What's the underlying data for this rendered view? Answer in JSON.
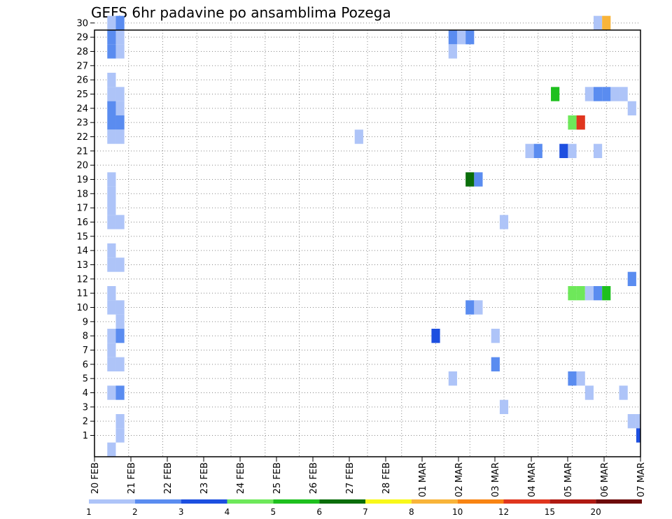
{
  "chart_data": {
    "type": "heatmap",
    "title": "GEFS 6hr padavine po ansamblima Pozega",
    "x_start": "2024-02-20T00",
    "x_end": "2024-03-07T00",
    "x_step_hours": 6,
    "x_tick_labels": [
      "20 FEB",
      "21 FEB",
      "22 FEB",
      "23 FEB",
      "24 FEB",
      "25 FEB",
      "26 FEB",
      "27 FEB",
      "28 FEB",
      "01 MAR",
      "02 MAR",
      "03 MAR",
      "04 MAR",
      "05 MAR",
      "06 MAR",
      "07 MAR"
    ],
    "y_members": [
      1,
      2,
      3,
      4,
      5,
      6,
      7,
      8,
      9,
      10,
      11,
      12,
      13,
      14,
      15,
      16,
      17,
      18,
      19,
      20,
      21,
      22,
      23,
      24,
      25,
      26,
      27,
      28,
      29,
      30
    ],
    "grid": true,
    "grid_style": "dotted",
    "legend_placement": "bottom",
    "legend": {
      "boundaries": [
        "1",
        "2",
        "3",
        "4",
        "5",
        "6",
        "7",
        "8",
        "10",
        "12",
        "15",
        "20"
      ],
      "colors": [
        "#aec4f8",
        "#5a8cf0",
        "#1d4fe0",
        "#6ee85a",
        "#1ec01e",
        "#0a6e0a",
        "#f8f81a",
        "#f8b43a",
        "#f88412",
        "#e0361e",
        "#b01a12",
        "#6e0a0a"
      ]
    },
    "cells": [
      {
        "t": "2024-02-20T12",
        "m": 30,
        "c": "#aec4f8"
      },
      {
        "t": "2024-02-20T18",
        "m": 30,
        "c": "#5a8cf0"
      },
      {
        "t": "2024-02-20T12",
        "m": 29,
        "c": "#5a8cf0"
      },
      {
        "t": "2024-02-20T18",
        "m": 29,
        "c": "#aec4f8"
      },
      {
        "t": "2024-02-20T12",
        "m": 28,
        "c": "#5a8cf0"
      },
      {
        "t": "2024-02-20T18",
        "m": 28,
        "c": "#aec4f8"
      },
      {
        "t": "2024-02-20T12",
        "m": 26,
        "c": "#aec4f8"
      },
      {
        "t": "2024-02-20T12",
        "m": 25,
        "c": "#aec4f8"
      },
      {
        "t": "2024-02-20T18",
        "m": 25,
        "c": "#aec4f8"
      },
      {
        "t": "2024-02-20T12",
        "m": 24,
        "c": "#5a8cf0"
      },
      {
        "t": "2024-02-20T18",
        "m": 24,
        "c": "#aec4f8"
      },
      {
        "t": "2024-02-20T12",
        "m": 23,
        "c": "#5a8cf0"
      },
      {
        "t": "2024-02-20T18",
        "m": 23,
        "c": "#5a8cf0"
      },
      {
        "t": "2024-02-20T12",
        "m": 22,
        "c": "#aec4f8"
      },
      {
        "t": "2024-02-20T18",
        "m": 22,
        "c": "#aec4f8"
      },
      {
        "t": "2024-02-20T12",
        "m": 19,
        "c": "#aec4f8"
      },
      {
        "t": "2024-02-20T12",
        "m": 18,
        "c": "#aec4f8"
      },
      {
        "t": "2024-02-20T12",
        "m": 17,
        "c": "#aec4f8"
      },
      {
        "t": "2024-02-20T12",
        "m": 16,
        "c": "#aec4f8"
      },
      {
        "t": "2024-02-20T18",
        "m": 16,
        "c": "#aec4f8"
      },
      {
        "t": "2024-02-20T12",
        "m": 14,
        "c": "#aec4f8"
      },
      {
        "t": "2024-02-20T12",
        "m": 13,
        "c": "#aec4f8"
      },
      {
        "t": "2024-02-20T18",
        "m": 13,
        "c": "#aec4f8"
      },
      {
        "t": "2024-02-20T12",
        "m": 11,
        "c": "#aec4f8"
      },
      {
        "t": "2024-02-20T12",
        "m": 10,
        "c": "#aec4f8"
      },
      {
        "t": "2024-02-20T18",
        "m": 10,
        "c": "#aec4f8"
      },
      {
        "t": "2024-02-20T18",
        "m": 9,
        "c": "#aec4f8"
      },
      {
        "t": "2024-02-20T12",
        "m": 8,
        "c": "#aec4f8"
      },
      {
        "t": "2024-02-20T18",
        "m": 8,
        "c": "#5a8cf0"
      },
      {
        "t": "2024-02-20T12",
        "m": 7,
        "c": "#aec4f8"
      },
      {
        "t": "2024-02-20T12",
        "m": 6,
        "c": "#aec4f8"
      },
      {
        "t": "2024-02-20T18",
        "m": 6,
        "c": "#aec4f8"
      },
      {
        "t": "2024-02-20T12",
        "m": 4,
        "c": "#aec4f8"
      },
      {
        "t": "2024-02-20T18",
        "m": 4,
        "c": "#5a8cf0"
      },
      {
        "t": "2024-02-20T18",
        "m": 2,
        "c": "#aec4f8"
      },
      {
        "t": "2024-02-20T18",
        "m": 1,
        "c": "#aec4f8"
      },
      {
        "t": "2024-02-20T12",
        "m": 0,
        "c": "#aec4f8"
      },
      {
        "t": "2024-02-27T18",
        "m": 22,
        "c": "#aec4f8"
      },
      {
        "t": "2024-03-01T00",
        "m": 8,
        "c": "#1d4fe0"
      },
      {
        "t": "2024-03-01T12",
        "m": 29,
        "c": "#5a8cf0"
      },
      {
        "t": "2024-03-01T18",
        "m": 29,
        "c": "#aec4f8"
      },
      {
        "t": "2024-03-02T00",
        "m": 29,
        "c": "#5a8cf0"
      },
      {
        "t": "2024-03-01T12",
        "m": 28,
        "c": "#aec4f8"
      },
      {
        "t": "2024-03-02T00",
        "m": 19,
        "c": "#0a6e0a"
      },
      {
        "t": "2024-03-02T06",
        "m": 19,
        "c": "#5a8cf0"
      },
      {
        "t": "2024-03-02T00",
        "m": 10,
        "c": "#5a8cf0"
      },
      {
        "t": "2024-03-02T06",
        "m": 10,
        "c": "#aec4f8"
      },
      {
        "t": "2024-03-01T12",
        "m": 5,
        "c": "#aec4f8"
      },
      {
        "t": "2024-03-02T18",
        "m": 8,
        "c": "#aec4f8"
      },
      {
        "t": "2024-03-02T18",
        "m": 6,
        "c": "#5a8cf0"
      },
      {
        "t": "2024-03-03T00",
        "m": 16,
        "c": "#aec4f8"
      },
      {
        "t": "2024-03-03T00",
        "m": 3,
        "c": "#aec4f8"
      },
      {
        "t": "2024-03-03T18",
        "m": 21,
        "c": "#aec4f8"
      },
      {
        "t": "2024-03-04T00",
        "m": 21,
        "c": "#5a8cf0"
      },
      {
        "t": "2024-03-04T12",
        "m": 25,
        "c": "#1ec01e"
      },
      {
        "t": "2024-03-04T18",
        "m": 21,
        "c": "#1d4fe0"
      },
      {
        "t": "2024-03-05T00",
        "m": 21,
        "c": "#aec4f8"
      },
      {
        "t": "2024-03-05T00",
        "m": 23,
        "c": "#6ee85a"
      },
      {
        "t": "2024-03-05T06",
        "m": 23,
        "c": "#e0361e"
      },
      {
        "t": "2024-03-05T00",
        "m": 11,
        "c": "#6ee85a"
      },
      {
        "t": "2024-03-05T06",
        "m": 11,
        "c": "#6ee85a"
      },
      {
        "t": "2024-03-05T12",
        "m": 11,
        "c": "#aec4f8"
      },
      {
        "t": "2024-03-05T18",
        "m": 11,
        "c": "#5a8cf0"
      },
      {
        "t": "2024-03-06T00",
        "m": 11,
        "c": "#1ec01e"
      },
      {
        "t": "2024-03-05T00",
        "m": 5,
        "c": "#5a8cf0"
      },
      {
        "t": "2024-03-05T06",
        "m": 5,
        "c": "#aec4f8"
      },
      {
        "t": "2024-03-05T12",
        "m": 4,
        "c": "#aec4f8"
      },
      {
        "t": "2024-03-05T12",
        "m": 25,
        "c": "#aec4f8"
      },
      {
        "t": "2024-03-05T18",
        "m": 25,
        "c": "#5a8cf0"
      },
      {
        "t": "2024-03-06T00",
        "m": 25,
        "c": "#5a8cf0"
      },
      {
        "t": "2024-03-06T06",
        "m": 25,
        "c": "#aec4f8"
      },
      {
        "t": "2024-03-06T12",
        "m": 25,
        "c": "#aec4f8"
      },
      {
        "t": "2024-03-05T18",
        "m": 21,
        "c": "#aec4f8"
      },
      {
        "t": "2024-03-05T18",
        "m": 30,
        "c": "#aec4f8"
      },
      {
        "t": "2024-03-06T00",
        "m": 30,
        "c": "#f8b43a"
      },
      {
        "t": "2024-03-06T18",
        "m": 24,
        "c": "#aec4f8"
      },
      {
        "t": "2024-03-06T18",
        "m": 12,
        "c": "#5a8cf0"
      },
      {
        "t": "2024-03-06T12",
        "m": 4,
        "c": "#aec4f8"
      },
      {
        "t": "2024-03-06T18",
        "m": 2,
        "c": "#aec4f8"
      },
      {
        "t": "2024-03-07T00",
        "m": 2,
        "c": "#aec4f8"
      },
      {
        "t": "2024-03-07T00",
        "m": 1,
        "c": "#1d4fe0"
      }
    ]
  }
}
